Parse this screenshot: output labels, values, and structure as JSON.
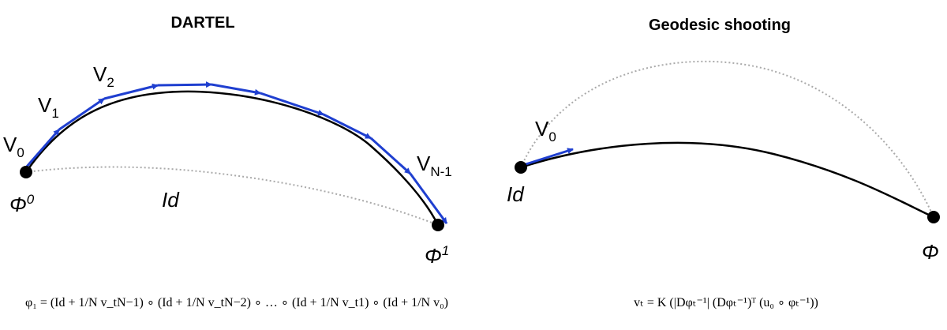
{
  "panels": [
    {
      "title": "DARTEL",
      "labels": [
        {
          "base": "V",
          "sub": "0"
        },
        {
          "base": "V",
          "sub": "1"
        },
        {
          "base": "V",
          "sub": "2"
        },
        {
          "base": "V",
          "sub": "N-1"
        },
        {
          "base": "Φ",
          "sup": "0"
        },
        {
          "base": "Id"
        },
        {
          "base": "Φ",
          "sup": "1"
        }
      ],
      "formula": "φ₁ = (Id + 1/N v_tN−1) ∘ (Id + 1/N v_tN−2) ∘ … ∘ (Id + 1/N v_t1) ∘ (Id + 1/N v₀)"
    },
    {
      "title": "Geodesic shooting",
      "labels": [
        {
          "base": "V",
          "sub": "0"
        },
        {
          "base": "Id"
        },
        {
          "base": "Φ"
        }
      ],
      "formula": "vₜ = K (|Dφₜ⁻¹| (Dφₜ⁻¹)ᵀ (u₀ ∘ φₜ⁻¹))"
    }
  ]
}
